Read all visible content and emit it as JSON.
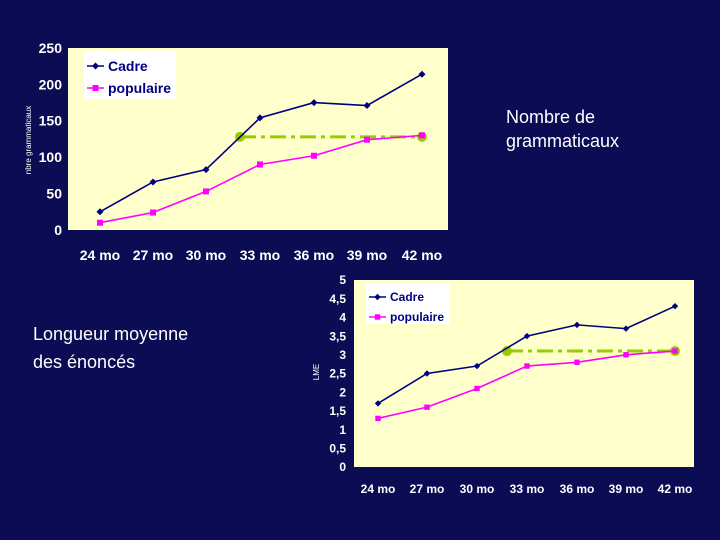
{
  "captions": {
    "top": [
      "Nombre de",
      "grammaticaux"
    ],
    "bottom": [
      "Longueur moyenne",
      "des énoncés"
    ]
  },
  "colors": {
    "background": "#0c0c54",
    "plot_area": "#ffffcc",
    "cadre": "#000080",
    "populaire": "#ff00ff",
    "reference": "#99cc00"
  },
  "chart_data": [
    {
      "type": "line",
      "categories": [
        "24 mo",
        "27 mo",
        "30 mo",
        "33 mo",
        "36 mo",
        "39 mo",
        "42 mo"
      ],
      "series": [
        {
          "name": "Cadre",
          "values": [
            25,
            66,
            83,
            154,
            175,
            171,
            214
          ]
        },
        {
          "name": "populaire",
          "values": [
            10,
            24,
            53,
            90,
            102,
            124,
            130
          ]
        }
      ],
      "reference_line": {
        "value": 128,
        "from": "33 mo",
        "to": "42 mo"
      },
      "ylim": [
        0,
        250
      ],
      "yticks": [
        "0",
        "50",
        "100",
        "150",
        "200",
        "250"
      ],
      "ylabel": "nbre grammaticaux",
      "legend": "top-left",
      "grid": false
    },
    {
      "type": "line",
      "categories": [
        "24 mo",
        "27 mo",
        "30 mo",
        "33 mo",
        "36 mo",
        "39 mo",
        "42 mo"
      ],
      "series": [
        {
          "name": "Cadre",
          "values": [
            1.7,
            2.5,
            2.7,
            3.5,
            3.8,
            3.7,
            4.3
          ]
        },
        {
          "name": "populaire",
          "values": [
            1.3,
            1.6,
            2.1,
            2.7,
            2.8,
            3.0,
            3.1
          ]
        }
      ],
      "reference_line": {
        "value": 3.1,
        "from": "33 mo",
        "to": "42 mo"
      },
      "ylim": [
        0,
        5
      ],
      "yticks": [
        "0",
        "0,5",
        "1",
        "1,5",
        "2",
        "2,5",
        "3",
        "3,5",
        "4",
        "4,5",
        "5"
      ],
      "ylabel": "LME",
      "legend": "top-left",
      "grid": false
    }
  ]
}
